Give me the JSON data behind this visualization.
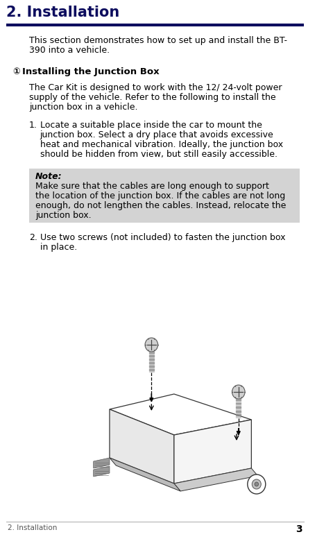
{
  "page_width": 4.81,
  "page_height": 7.77,
  "dpi": 100,
  "bg_color": "#ffffff",
  "text_color": "#000000",
  "header_title": "2. Installation",
  "header_title_color": "#0d0d5e",
  "header_line_color": "#0d0d5e",
  "intro_text": "This section demonstrates how to set up and install the BT-\n390 into a vehicle.",
  "bullet_symbol": "①",
  "bullet_heading": "Installing the Junction Box",
  "body_text1_line1": "The Car Kit is designed to work with the 12/ 24-volt power",
  "body_text1_line2": "supply of the vehicle. Refer to the following to install the",
  "body_text1_line3": "junction box in a vehicle.",
  "step1_text_lines": [
    "Locate a suitable place inside the car to mount the",
    "junction box. Select a dry place that avoids excessive",
    "heat and mechanical vibration. Ideally, the junction box",
    "should be hidden from view, but still easily accessible."
  ],
  "note_bg_color": "#d3d3d3",
  "note_label": "Note:",
  "note_text_lines": [
    "Make sure that the cables are long enough to support",
    "the location of the junction box. If the cables are not long",
    "enough, do not lengthen the cables. Instead, relocate the",
    "junction box."
  ],
  "step2_text_lines": [
    "Use two screws (not included) to fasten the junction box",
    "in place."
  ],
  "page_num": "3",
  "footer_text": "2. Installation",
  "gray_color": "#888888",
  "dark_gray": "#555555",
  "mid_gray": "#aaaaaa"
}
